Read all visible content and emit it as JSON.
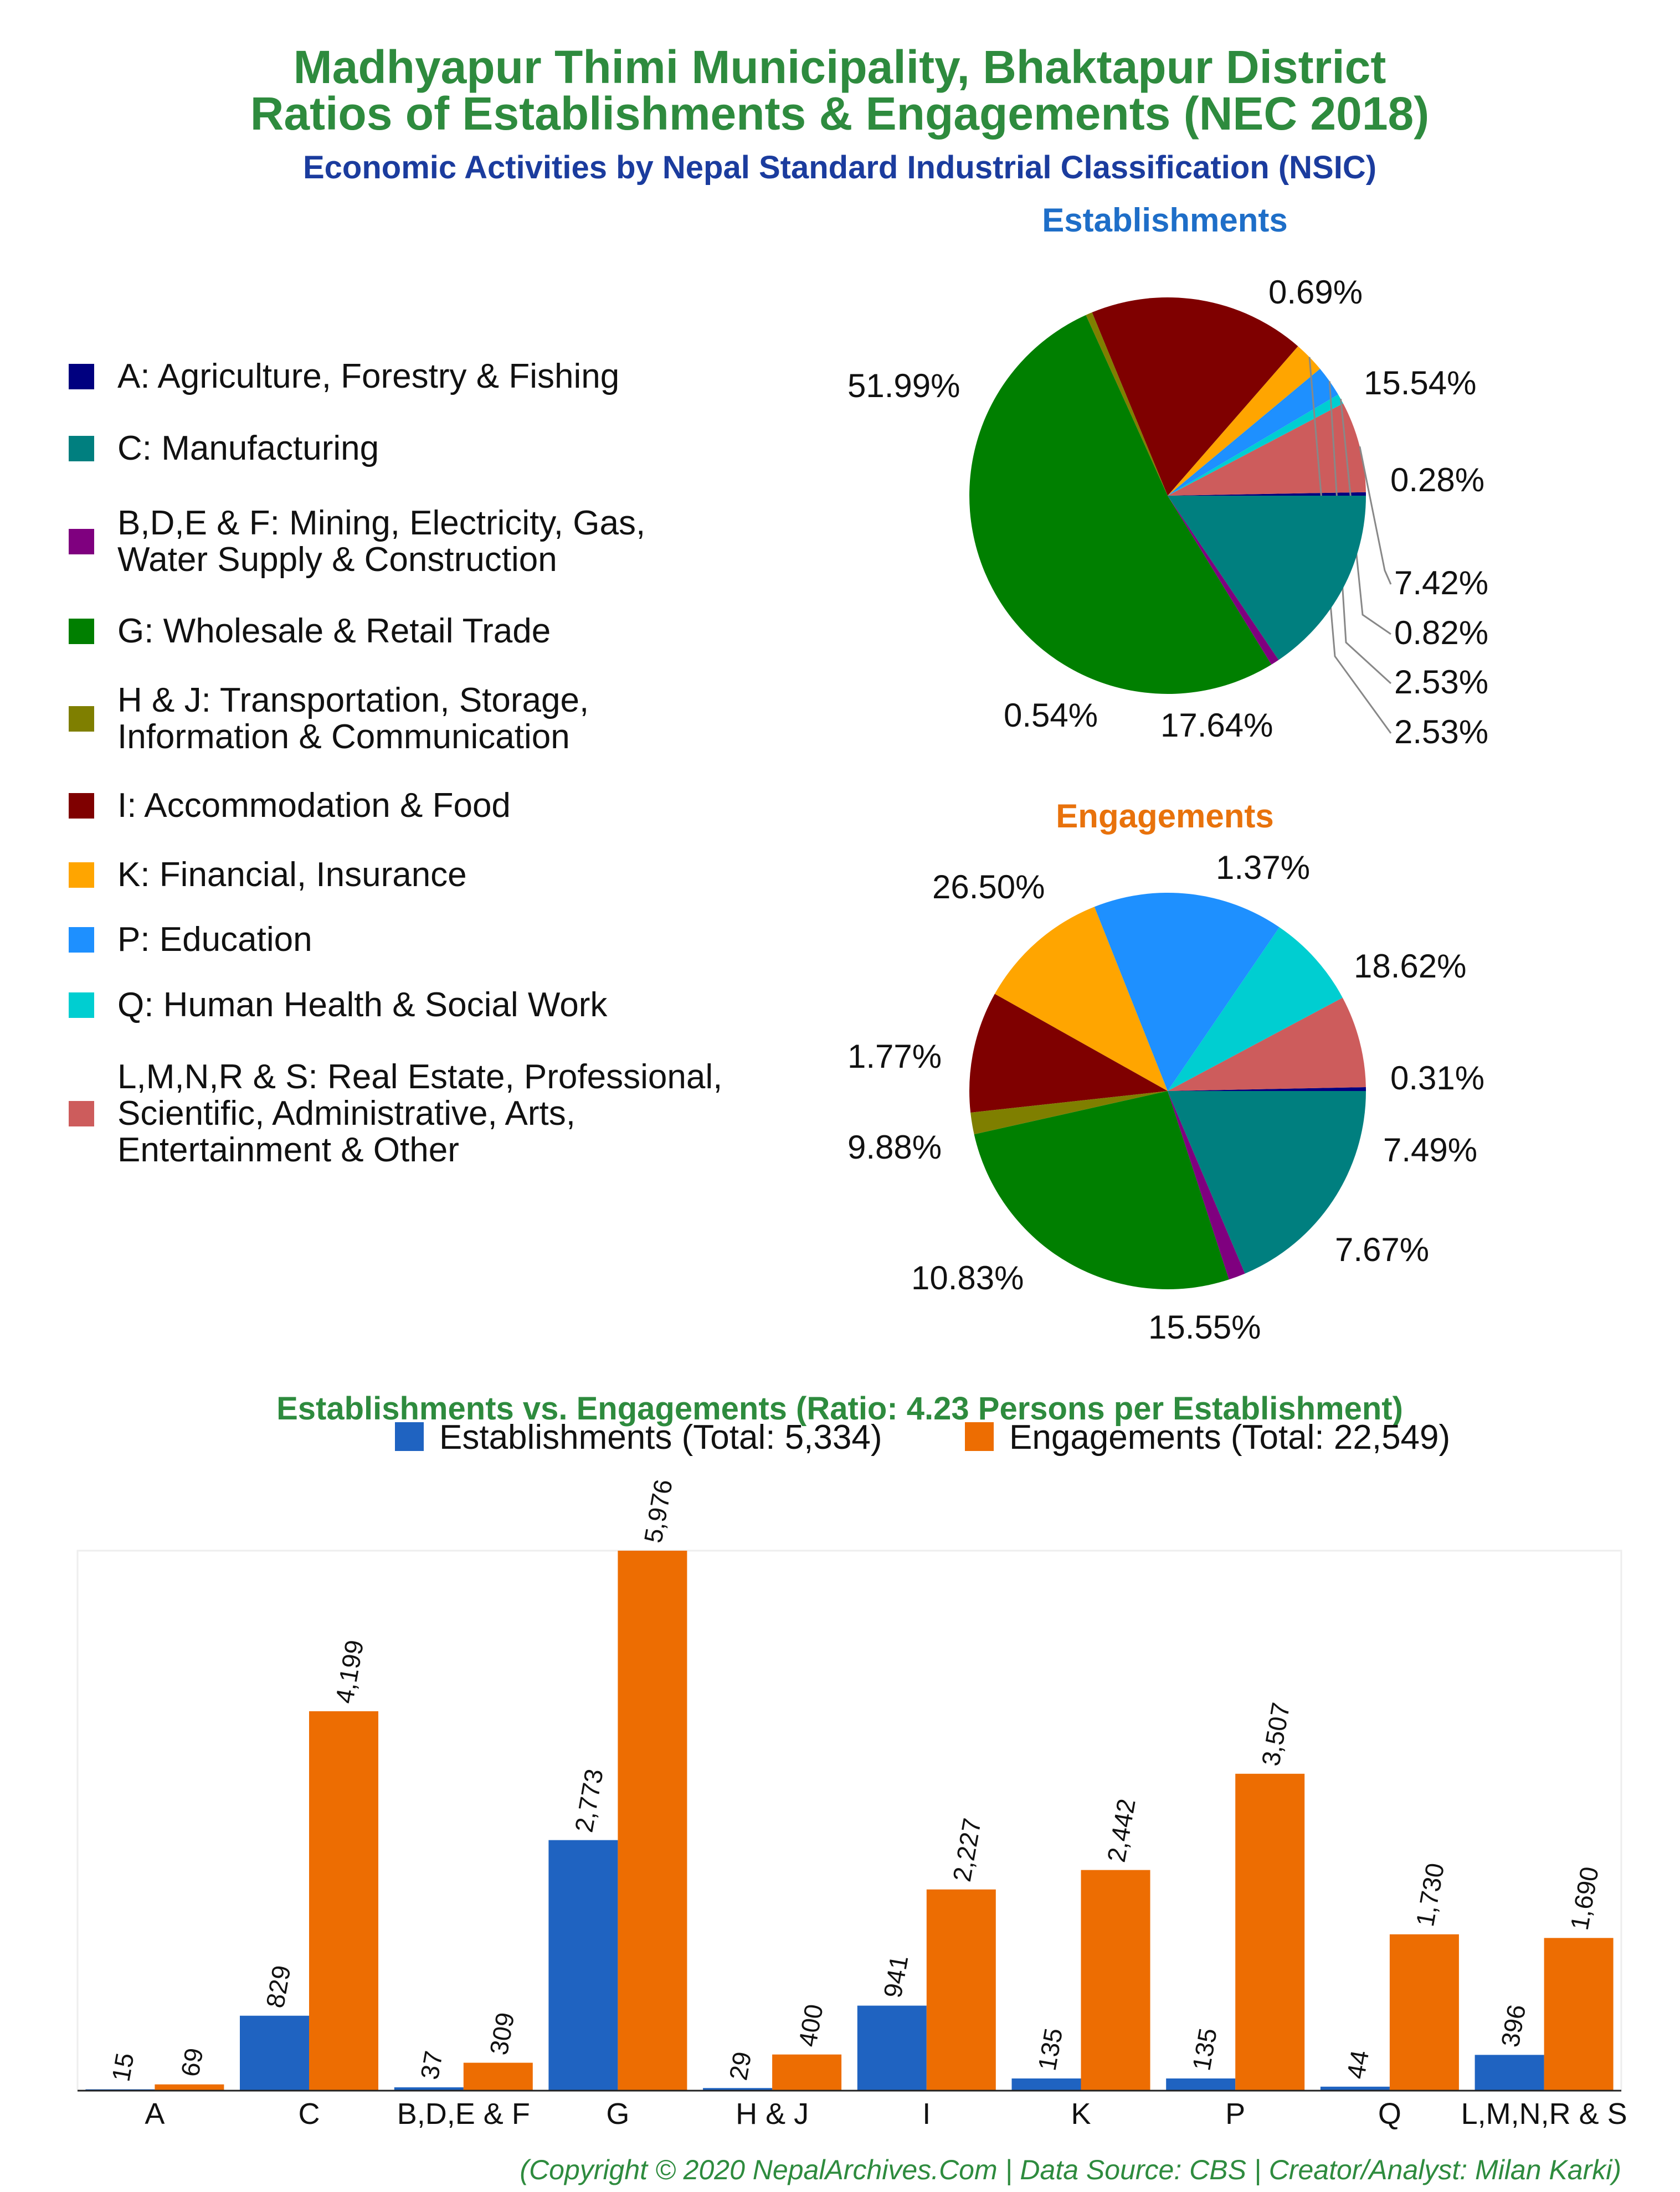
{
  "title_line1": "Madhyapur Thimi Municipality, Bhaktapur District",
  "title_line2": "Ratios of Establishments & Engagements (NEC 2018)",
  "subtitle": "Economic Activities by Nepal Standard Industrial Classification (NSIC)",
  "legend": [
    {
      "lines": [
        "A: Agriculture, Forestry & Fishing"
      ],
      "color": "#00007f"
    },
    {
      "lines": [
        "C: Manufacturing"
      ],
      "color": "#007f7f"
    },
    {
      "lines": [
        "B,D,E & F: Mining, Electricity, Gas,",
        "Water Supply & Construction"
      ],
      "color": "#7f007f"
    },
    {
      "lines": [
        "G: Wholesale & Retail Trade"
      ],
      "color": "#007f00"
    },
    {
      "lines": [
        "H & J: Transportation, Storage,",
        "Information & Communication"
      ],
      "color": "#7f7f00"
    },
    {
      "lines": [
        "I: Accommodation & Food"
      ],
      "color": "#7f0000"
    },
    {
      "lines": [
        "K: Financial, Insurance"
      ],
      "color": "#ffa500"
    },
    {
      "lines": [
        "P: Education"
      ],
      "color": "#1e90ff"
    },
    {
      "lines": [
        "Q: Human Health & Social Work"
      ],
      "color": "#00ced1"
    },
    {
      "lines": [
        "L,M,N,R & S: Real Estate, Professional,",
        "Scientific, Administrative, Arts,",
        "Entertainment & Other"
      ],
      "color": "#cd5c5c"
    }
  ],
  "chart_data": [
    {
      "type": "pie",
      "title": "Establishments",
      "title_color": "#1e6ec8",
      "slices": [
        {
          "label": "A",
          "value": 0.28,
          "text": "0.28%"
        },
        {
          "label": "L,M,N,R & S",
          "value": 7.42,
          "text": "7.42%"
        },
        {
          "label": "Q",
          "value": 0.82,
          "text": "0.82%"
        },
        {
          "label": "P",
          "value": 2.53,
          "text": "2.53%"
        },
        {
          "label": "K",
          "value": 2.53,
          "text": "2.53%"
        },
        {
          "label": "I",
          "value": 17.64,
          "text": "17.64%"
        },
        {
          "label": "H & J",
          "value": 0.54,
          "text": "0.54%"
        },
        {
          "label": "G",
          "value": 51.99,
          "text": "51.99%"
        },
        {
          "label": "B,D,E & F",
          "value": 0.69,
          "text": "0.69%"
        },
        {
          "label": "C",
          "value": 15.54,
          "text": "15.54%"
        }
      ]
    },
    {
      "type": "pie",
      "title": "Engagements",
      "title_color": "#e8720c",
      "slices": [
        {
          "label": "A",
          "value": 0.31,
          "text": "0.31%"
        },
        {
          "label": "L,M,N,R & S",
          "value": 7.49,
          "text": "7.49%"
        },
        {
          "label": "Q",
          "value": 7.67,
          "text": "7.67%"
        },
        {
          "label": "P",
          "value": 15.55,
          "text": "15.55%"
        },
        {
          "label": "K",
          "value": 10.83,
          "text": "10.83%"
        },
        {
          "label": "I",
          "value": 9.88,
          "text": "9.88%"
        },
        {
          "label": "H & J",
          "value": 1.77,
          "text": "1.77%"
        },
        {
          "label": "G",
          "value": 26.5,
          "text": "26.50%"
        },
        {
          "label": "B,D,E & F",
          "value": 1.37,
          "text": "1.37%"
        },
        {
          "label": "C",
          "value": 18.62,
          "text": "18.62%"
        }
      ]
    },
    {
      "type": "bar",
      "title": "Establishments vs. Engagements (Ratio: 4.23 Persons per Establishment)",
      "categories": [
        "A",
        "C",
        "B,D,E & F",
        "G",
        "H & J",
        "I",
        "K",
        "P",
        "Q",
        "L,M,N,R & S"
      ],
      "series": [
        {
          "name": "Establishments (Total: 5,334)",
          "color": "#1f63c1",
          "values": [
            15,
            829,
            37,
            2773,
            29,
            941,
            135,
            135,
            44,
            396
          ],
          "labels": [
            "15",
            "829",
            "37",
            "2,773",
            "29",
            "941",
            "135",
            "135",
            "44",
            "396"
          ]
        },
        {
          "name": "Engagements (Total: 22,549)",
          "color": "#ed6d02",
          "values": [
            69,
            4199,
            309,
            5976,
            400,
            2227,
            2442,
            3507,
            1730,
            1690
          ],
          "labels": [
            "69",
            "4,199",
            "309",
            "5,976",
            "400",
            "2,227",
            "2,442",
            "3,507",
            "1,730",
            "1,690"
          ]
        }
      ],
      "ylim": [
        0,
        5976
      ]
    }
  ],
  "footer": "(Copyright © 2020 NepalArchives.Com | Data Source: CBS | Creator/Analyst: Milan Karki)"
}
